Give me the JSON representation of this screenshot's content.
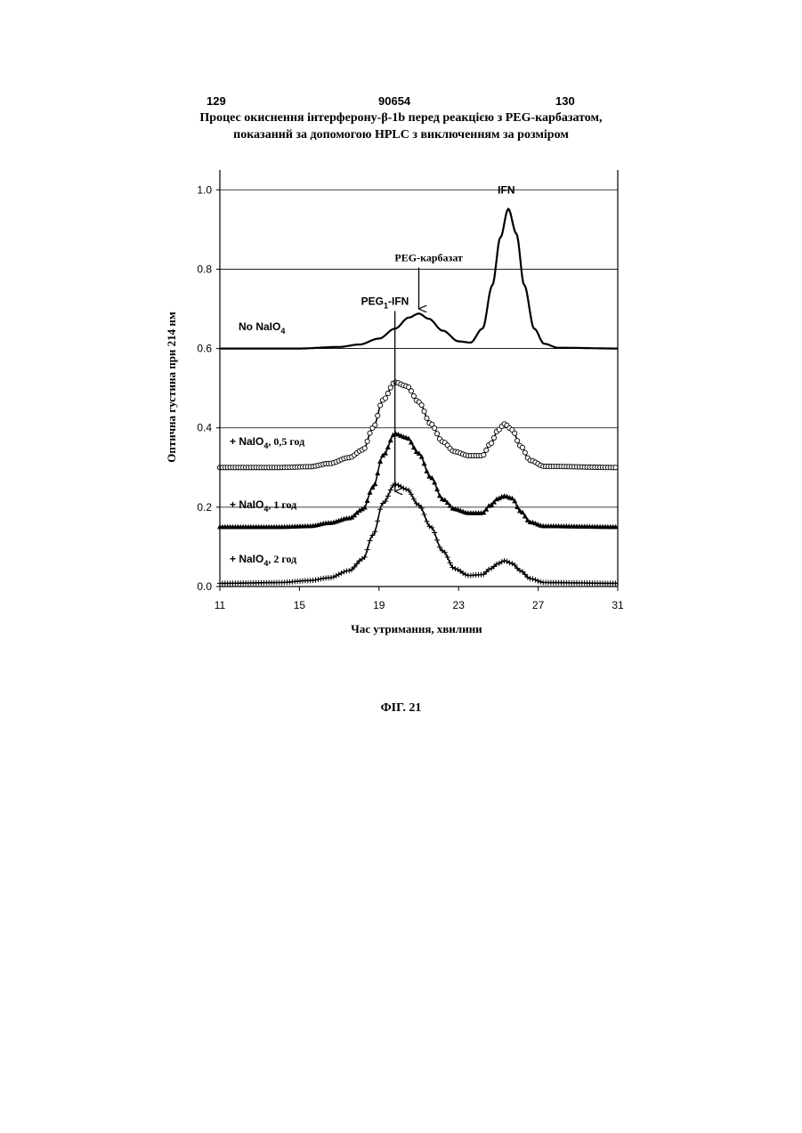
{
  "header": {
    "page_left": "129",
    "patent_number": "90654",
    "page_right": "130"
  },
  "title_lines": [
    "Процес окиснення інтерферону-β-1b перед реакцією з PEG-карбазатом,",
    "показаний за допомогою HPLC з виключенням за розміром"
  ],
  "figure_caption": "ФІГ. 21",
  "chart_data": {
    "type": "line",
    "xlabel": "Час утримання, хвилини",
    "ylabel": "Оптична густина при 214 нм",
    "xlim": [
      11,
      31
    ],
    "ylim": [
      0,
      1.05
    ],
    "xticks": [
      "11",
      "15",
      "19",
      "23",
      "27",
      "31"
    ],
    "yticks": [
      "0.0",
      "0.2",
      "0.4",
      "0.6",
      "0.8",
      "1.0"
    ],
    "grid": "horizontal",
    "series": [
      {
        "name": "No NaIO",
        "name_subscript": "4",
        "marker": "none",
        "color": "#000000",
        "points": [
          [
            11,
            0.6
          ],
          [
            15,
            0.6
          ],
          [
            17,
            0.604
          ],
          [
            18,
            0.61
          ],
          [
            19,
            0.625
          ],
          [
            19.8,
            0.65
          ],
          [
            20.5,
            0.678
          ],
          [
            21.0,
            0.688
          ],
          [
            21.5,
            0.675
          ],
          [
            22.2,
            0.645
          ],
          [
            23.0,
            0.618
          ],
          [
            23.6,
            0.615
          ],
          [
            24.2,
            0.65
          ],
          [
            24.7,
            0.76
          ],
          [
            25.1,
            0.88
          ],
          [
            25.5,
            0.952
          ],
          [
            25.9,
            0.89
          ],
          [
            26.3,
            0.76
          ],
          [
            26.8,
            0.65
          ],
          [
            27.3,
            0.612
          ],
          [
            28,
            0.602
          ],
          [
            31,
            0.6
          ]
        ]
      },
      {
        "name": "+ NaIO",
        "name_subscript": "4",
        "name_suffix": ", 0,5 год",
        "marker": "circle",
        "color": "#000000",
        "points": [
          [
            11,
            0.3
          ],
          [
            14,
            0.3
          ],
          [
            15.5,
            0.302
          ],
          [
            16.5,
            0.31
          ],
          [
            17.5,
            0.325
          ],
          [
            18.2,
            0.345
          ],
          [
            18.7,
            0.4
          ],
          [
            19.2,
            0.47
          ],
          [
            19.8,
            0.515
          ],
          [
            20.4,
            0.505
          ],
          [
            21.0,
            0.465
          ],
          [
            21.6,
            0.41
          ],
          [
            22.2,
            0.365
          ],
          [
            22.8,
            0.34
          ],
          [
            23.5,
            0.33
          ],
          [
            24.2,
            0.33
          ],
          [
            24.6,
            0.36
          ],
          [
            25.0,
            0.395
          ],
          [
            25.3,
            0.41
          ],
          [
            25.7,
            0.395
          ],
          [
            26.1,
            0.355
          ],
          [
            26.6,
            0.318
          ],
          [
            27.3,
            0.303
          ],
          [
            31,
            0.3
          ]
        ]
      },
      {
        "name": "+ NaIO",
        "name_subscript": "4",
        "name_suffix": ", 1 год",
        "marker": "triangle",
        "color": "#000000",
        "points": [
          [
            11,
            0.15
          ],
          [
            14,
            0.15
          ],
          [
            15.5,
            0.152
          ],
          [
            16.5,
            0.16
          ],
          [
            17.5,
            0.172
          ],
          [
            18.2,
            0.195
          ],
          [
            18.7,
            0.25
          ],
          [
            19.2,
            0.33
          ],
          [
            19.8,
            0.385
          ],
          [
            20.4,
            0.375
          ],
          [
            21.0,
            0.335
          ],
          [
            21.6,
            0.275
          ],
          [
            22.2,
            0.22
          ],
          [
            22.8,
            0.195
          ],
          [
            23.5,
            0.185
          ],
          [
            24.2,
            0.185
          ],
          [
            24.6,
            0.205
          ],
          [
            25.0,
            0.222
          ],
          [
            25.3,
            0.228
          ],
          [
            25.7,
            0.222
          ],
          [
            26.1,
            0.19
          ],
          [
            26.6,
            0.162
          ],
          [
            27.3,
            0.152
          ],
          [
            31,
            0.15
          ]
        ]
      },
      {
        "name": "+ NaIO",
        "name_subscript": "4",
        "name_suffix": ", 2 год",
        "marker": "plus",
        "color": "#000000",
        "points": [
          [
            11,
            0.008
          ],
          [
            14,
            0.01
          ],
          [
            15.5,
            0.015
          ],
          [
            16.5,
            0.022
          ],
          [
            17.5,
            0.04
          ],
          [
            18.2,
            0.07
          ],
          [
            18.7,
            0.13
          ],
          [
            19.2,
            0.21
          ],
          [
            19.8,
            0.258
          ],
          [
            20.4,
            0.245
          ],
          [
            21.0,
            0.205
          ],
          [
            21.6,
            0.15
          ],
          [
            22.2,
            0.09
          ],
          [
            22.8,
            0.045
          ],
          [
            23.5,
            0.028
          ],
          [
            24.2,
            0.03
          ],
          [
            24.6,
            0.045
          ],
          [
            25.0,
            0.058
          ],
          [
            25.3,
            0.065
          ],
          [
            25.7,
            0.058
          ],
          [
            26.1,
            0.04
          ],
          [
            26.6,
            0.02
          ],
          [
            27.3,
            0.01
          ],
          [
            31,
            0.008
          ]
        ]
      }
    ],
    "annotations": [
      {
        "text": "IFN",
        "x": 25.4,
        "y": 0.99
      },
      {
        "text": "PEG-карбазат",
        "x": 21.5,
        "y": 0.82,
        "arrow_to": [
          21.0,
          0.7
        ]
      },
      {
        "text": "PEG",
        "subscript": "1",
        "suffix": "-IFN",
        "x": 19.3,
        "y": 0.71,
        "arrow_to": [
          19.8,
          0.24
        ]
      }
    ]
  }
}
